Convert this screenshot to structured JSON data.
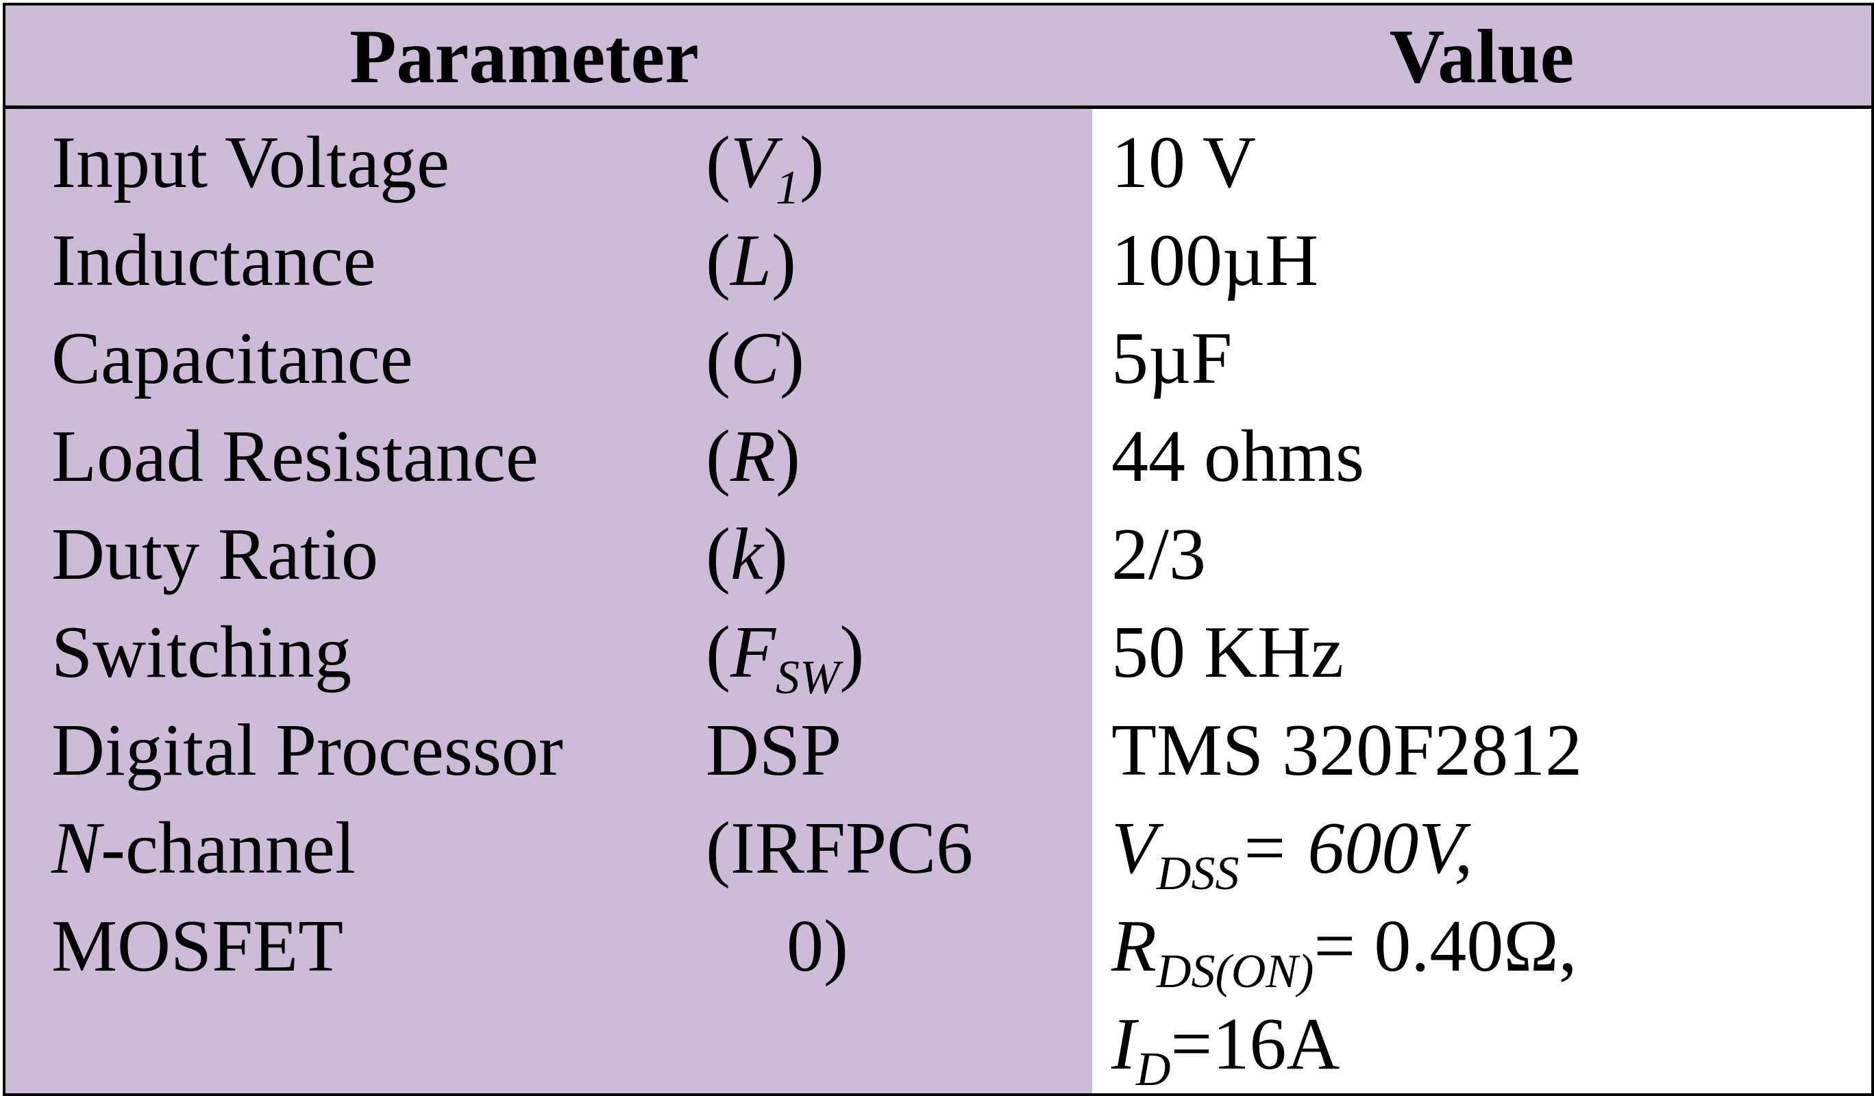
{
  "header": {
    "parameter": "Parameter",
    "value": "Value"
  },
  "rows": [
    {
      "name": "Input Voltage",
      "symbol_open": "(",
      "symbol": "V",
      "symbol_sub": "1",
      "symbol_close": ")",
      "value": "10 V"
    },
    {
      "name": "Inductance",
      "symbol_open": "(",
      "symbol": "L",
      "symbol_close": ")",
      "value": "100µH"
    },
    {
      "name": "Capacitance",
      "symbol_open": "(",
      "symbol": "C",
      "symbol_close": ")",
      "value": "5µF"
    },
    {
      "name": "Load Resistance",
      "symbol_open": "(",
      "symbol": "R",
      "symbol_close": ")",
      "value": "44 ohms"
    },
    {
      "name": "Duty Ratio",
      "symbol_open": "(",
      "symbol": "k",
      "symbol_close": ")",
      "value": "2/3"
    },
    {
      "name": "Switching",
      "symbol_open": "(",
      "symbol": "F",
      "symbol_sub": "SW",
      "symbol_close": ")",
      "value": "50 KHz"
    },
    {
      "name": "Digital Processor",
      "symbol": "DSP",
      "value": "TMS 320F2812"
    },
    {
      "name_italic": "N",
      "name_rest": "-channel",
      "name_line2": "MOSFET",
      "symbol_line1": "(IRFPC6",
      "symbol_line2": "0)",
      "value_line1_sym": "V",
      "value_line1_sub": "DSS",
      "value_line1_rest": "= 600V,",
      "value_line2_sym": "R",
      "value_line2_sub": "DS(ON)",
      "value_line2_rest": "= 0.40Ω,",
      "value_line3_sym": "I",
      "value_line3_sub": "D",
      "value_line3_rest": "=16A"
    }
  ]
}
